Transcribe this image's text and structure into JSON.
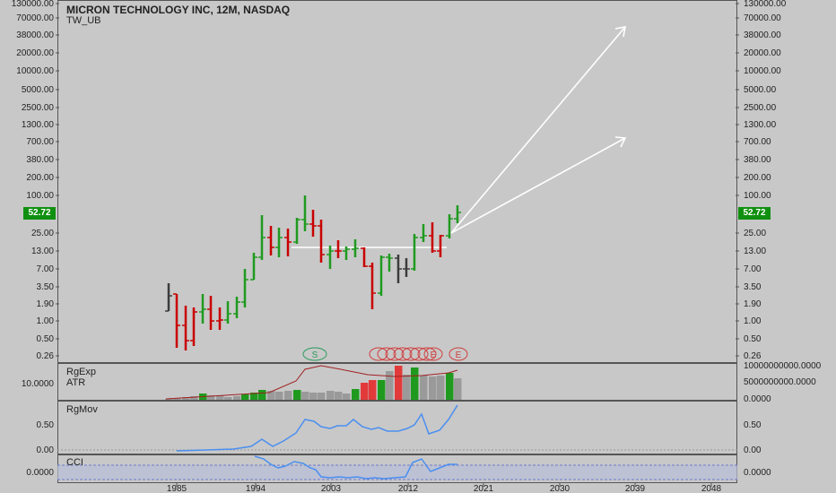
{
  "header": {
    "title": "MICRON TECHNOLOGY INC, 12M, NASDAQ",
    "subtitle": "TW_UB"
  },
  "price_axis": {
    "labels": [
      "130000.00",
      "70000.00",
      "38000.00",
      "20000.00",
      "10000.00",
      "5000.00",
      "2500.00",
      "1300.00",
      "700.00",
      "380.00",
      "200.00",
      "100.00",
      "52.72",
      "25.00",
      "13.00",
      "7.00",
      "3.50",
      "1.90",
      "1.00",
      "0.50",
      "0.26"
    ],
    "last_price": "52.72",
    "last_price_color": "#109010"
  },
  "time_axis": {
    "labels": [
      "1985",
      "1994",
      "2003",
      "2012",
      "2021",
      "2030",
      "2039",
      "2048"
    ]
  },
  "markers": {
    "s_label": "S",
    "e_labels": [
      "E",
      "E"
    ]
  },
  "panes": {
    "vol": {
      "name1": "RgExp",
      "name2": "ATR",
      "left_val": "10.0000",
      "right_top": "10000000000.0000",
      "right_mid": "5000000000.0000",
      "right_bot": "0.0000"
    },
    "rgmov": {
      "name": "RgMov",
      "left_val1": "0.50",
      "left_val2": "0.00",
      "right_val1": "0.50",
      "right_val2": "0.00"
    },
    "cci": {
      "name": "CCI",
      "left_val": "0.0000",
      "right_val": "0.0000"
    }
  },
  "colors": {
    "up": "#1f9a1f",
    "down": "#c80000",
    "neutral": "#3c3c3c",
    "background": "#c8c8c8",
    "arrow": "#ffffff",
    "line_blue": "#4a8ff0",
    "line_red": "#a02020"
  }
}
